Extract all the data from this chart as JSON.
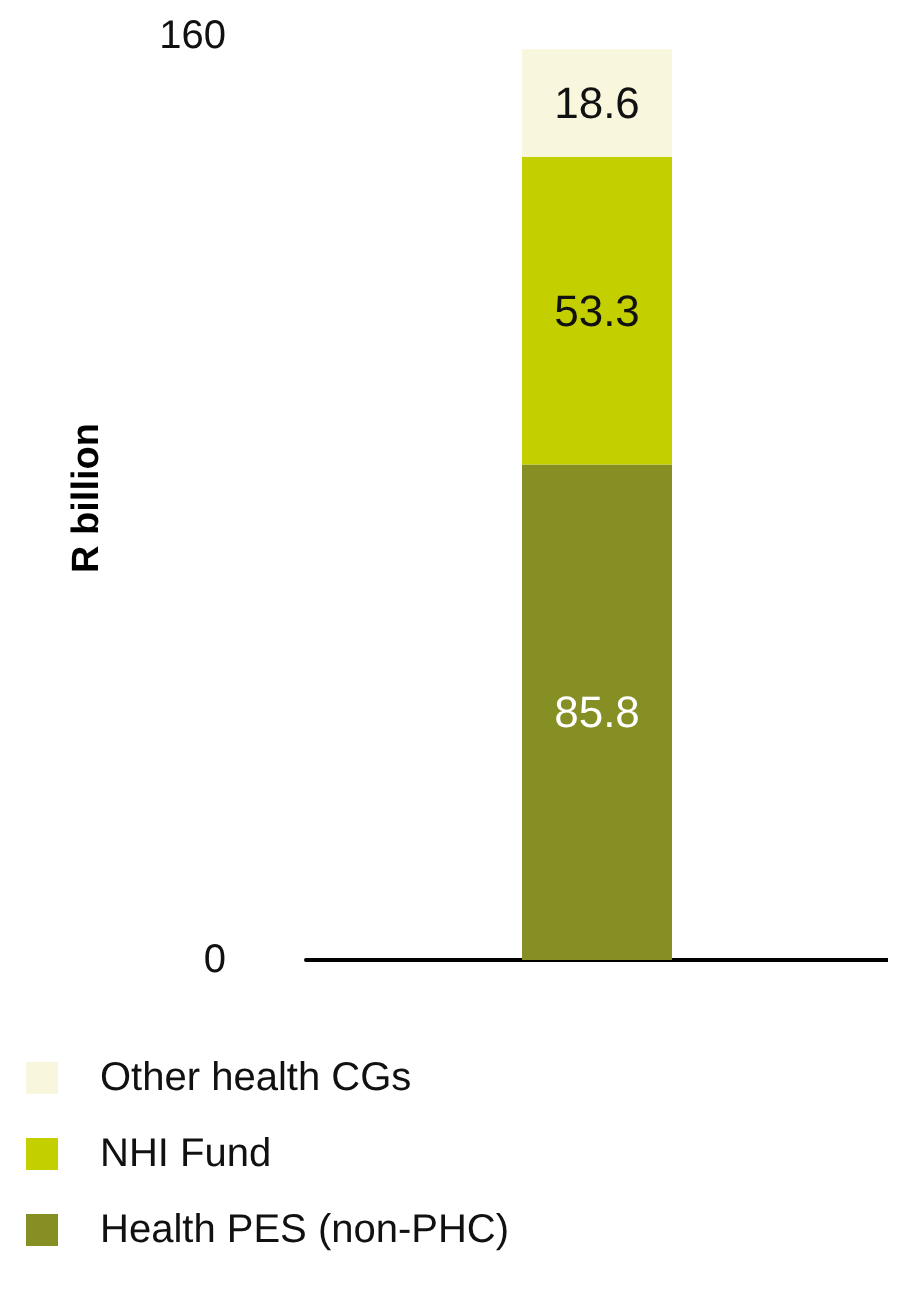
{
  "chart_data": {
    "type": "bar",
    "stacked": true,
    "categories": [
      null
    ],
    "ylabel": "R billion",
    "ylim": [
      0,
      160
    ],
    "yticks": [
      0,
      160
    ],
    "grid": false,
    "legend": "bottom",
    "data_labels": true,
    "tick_labels": "y",
    "series": [
      {
        "name": "Health PES (non-PHC)",
        "color": "#858f23",
        "values": [
          85.8
        ]
      },
      {
        "name": "NHI Fund",
        "color": "#c4cf00",
        "values": [
          53.3
        ]
      },
      {
        "name": "Other health CGs",
        "color": "#f8f6dc",
        "values": [
          18.6
        ]
      }
    ]
  }
}
